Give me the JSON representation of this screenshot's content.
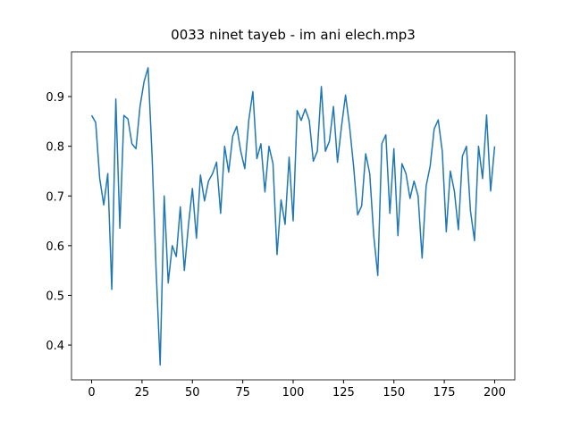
{
  "chart_data": {
    "type": "line",
    "title": "0033 ninet tayeb - im ani elech.mp3",
    "x": [
      0,
      2,
      4,
      6,
      8,
      10,
      12,
      14,
      16,
      18,
      20,
      22,
      24,
      26,
      28,
      30,
      32,
      34,
      36,
      38,
      40,
      42,
      44,
      46,
      48,
      50,
      52,
      54,
      56,
      58,
      60,
      62,
      64,
      66,
      68,
      70,
      72,
      74,
      76,
      78,
      80,
      82,
      84,
      86,
      88,
      90,
      92,
      94,
      96,
      98,
      100,
      102,
      104,
      106,
      108,
      110,
      112,
      114,
      116,
      118,
      120,
      122,
      124,
      126,
      128,
      130,
      132,
      134,
      136,
      138,
      140,
      142,
      144,
      146,
      148,
      150,
      152,
      154,
      156,
      158,
      160,
      162,
      164,
      166,
      168,
      170,
      172,
      174,
      176,
      178,
      180,
      182,
      184,
      186,
      188,
      190,
      192,
      194,
      196,
      198,
      200
    ],
    "series": [
      {
        "color": "#1f77b4",
        "values": [
          0.862,
          0.848,
          0.735,
          0.682,
          0.745,
          0.512,
          0.895,
          0.635,
          0.862,
          0.855,
          0.805,
          0.795,
          0.88,
          0.93,
          0.958,
          0.78,
          0.55,
          0.36,
          0.7,
          0.525,
          0.6,
          0.578,
          0.678,
          0.55,
          0.64,
          0.715,
          0.615,
          0.742,
          0.69,
          0.73,
          0.745,
          0.768,
          0.665,
          0.8,
          0.748,
          0.82,
          0.84,
          0.79,
          0.755,
          0.853,
          0.91,
          0.775,
          0.805,
          0.708,
          0.8,
          0.765,
          0.582,
          0.692,
          0.643,
          0.778,
          0.65,
          0.872,
          0.852,
          0.875,
          0.852,
          0.77,
          0.79,
          0.92,
          0.79,
          0.81,
          0.88,
          0.768,
          0.84,
          0.903,
          0.84,
          0.76,
          0.662,
          0.68,
          0.785,
          0.745,
          0.62,
          0.54,
          0.805,
          0.823,
          0.665,
          0.795,
          0.62,
          0.765,
          0.745,
          0.695,
          0.73,
          0.7,
          0.575,
          0.72,
          0.76,
          0.835,
          0.853,
          0.79,
          0.628,
          0.75,
          0.71,
          0.632,
          0.78,
          0.8,
          0.67,
          0.61,
          0.8,
          0.735,
          0.863,
          0.71,
          0.8
        ]
      }
    ],
    "xlim": [
      -10,
      210
    ],
    "ylim": [
      0.33,
      0.99
    ],
    "xticks": [
      0,
      25,
      50,
      75,
      100,
      125,
      150,
      175,
      200
    ],
    "yticks": [
      0.4,
      0.5,
      0.6,
      0.7,
      0.8,
      0.9
    ]
  }
}
